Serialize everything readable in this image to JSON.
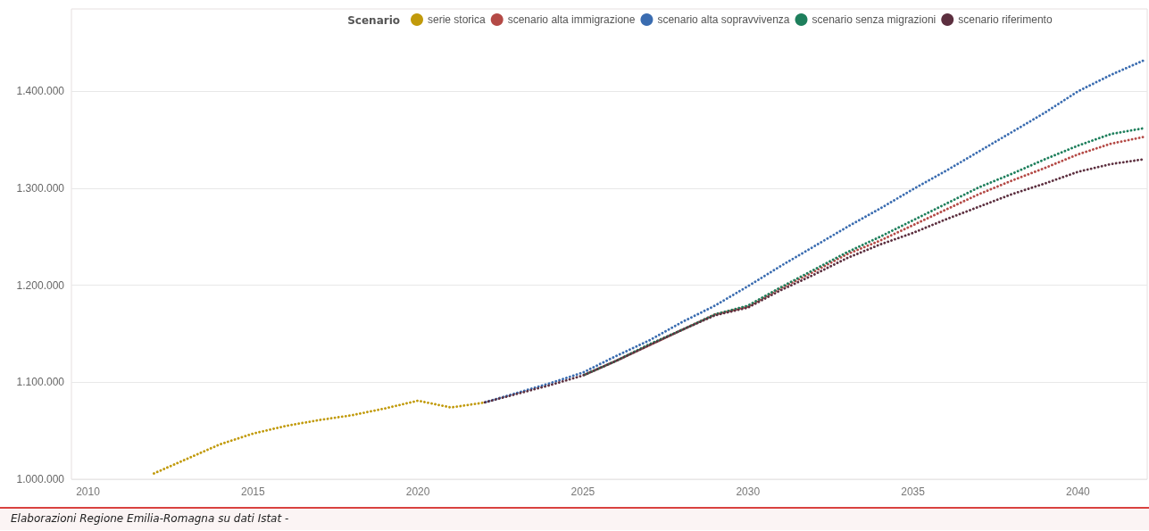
{
  "chart_data": {
    "type": "line",
    "legend_title": "Scenario",
    "series": [
      {
        "name": "serie storica",
        "color": "#c19a0b",
        "x": [
          2012,
          2013,
          2014,
          2015,
          2016,
          2017,
          2018,
          2019,
          2020,
          2021,
          2022
        ],
        "values": [
          1006000,
          1021000,
          1036000,
          1047000,
          1055000,
          1061000,
          1066000,
          1073000,
          1081000,
          1074000,
          1079000
        ]
      },
      {
        "name": "scenario alta immigrazione",
        "color": "#b44a46",
        "x": [
          2025,
          2026,
          2027,
          2028,
          2029,
          2030,
          2031,
          2032,
          2033,
          2034,
          2035,
          2036,
          2037,
          2038,
          2039,
          2040,
          2041,
          2042
        ],
        "values": [
          1107000,
          1122000,
          1138000,
          1154000,
          1170000,
          1178000,
          1197000,
          1214000,
          1232000,
          1246000,
          1262000,
          1278000,
          1294000,
          1308000,
          1321000,
          1335000,
          1346000,
          1353000
        ]
      },
      {
        "name": "scenario alta sopravvivenza",
        "color": "#3a6cb0",
        "x": [
          2022,
          2023,
          2024,
          2025,
          2026,
          2027,
          2028,
          2029,
          2030,
          2031,
          2032,
          2033,
          2034,
          2035,
          2036,
          2037,
          2038,
          2039,
          2040,
          2041,
          2042
        ],
        "values": [
          1079000,
          1089000,
          1099000,
          1110000,
          1127000,
          1143000,
          1162000,
          1179000,
          1199000,
          1220000,
          1240000,
          1260000,
          1279000,
          1299000,
          1318000,
          1338000,
          1358000,
          1378000,
          1400000,
          1417000,
          1432000
        ]
      },
      {
        "name": "scenario senza migrazioni",
        "color": "#1e7f5c",
        "x": [
          2025,
          2026,
          2027,
          2028,
          2029,
          2030,
          2031,
          2032,
          2033,
          2034,
          2035,
          2036,
          2037,
          2038,
          2039,
          2040,
          2041,
          2042
        ],
        "values": [
          1107000,
          1122000,
          1139000,
          1154000,
          1170000,
          1179000,
          1198000,
          1216000,
          1234000,
          1250000,
          1267000,
          1284000,
          1301000,
          1315000,
          1330000,
          1344000,
          1356000,
          1362000
        ]
      },
      {
        "name": "scenario riferimento",
        "color": "#5c2f3f",
        "x": [
          2022,
          2023,
          2024,
          2025,
          2026,
          2027,
          2028,
          2029,
          2030,
          2031,
          2032,
          2033,
          2034,
          2035,
          2036,
          2037,
          2038,
          2039,
          2040,
          2041,
          2042
        ],
        "values": [
          1079000,
          1088000,
          1097000,
          1107000,
          1122000,
          1138000,
          1154000,
          1169000,
          1177000,
          1195000,
          1211000,
          1228000,
          1242000,
          1254000,
          1268000,
          1281000,
          1294000,
          1305000,
          1317000,
          1325000,
          1330000
        ]
      }
    ],
    "xlim": [
      2009.5,
      2042.1
    ],
    "xticks": [
      2010,
      2015,
      2020,
      2025,
      2030,
      2035,
      2040
    ],
    "ylim": [
      1000000,
      1485000
    ],
    "yticks": [
      {
        "value": 1000000,
        "label": "1.000.000"
      },
      {
        "value": 1100000,
        "label": "1.100.000"
      },
      {
        "value": 1200000,
        "label": "1.200.000"
      },
      {
        "value": 1300000,
        "label": "1.300.000"
      },
      {
        "value": 1400000,
        "label": "1.400.000"
      }
    ],
    "grid": "y",
    "legend": "top",
    "marker": "none",
    "line_style": "dotted",
    "annotations": [
      "Elaborazioni Regione Emilia-Romagna su dati Istat -"
    ]
  }
}
